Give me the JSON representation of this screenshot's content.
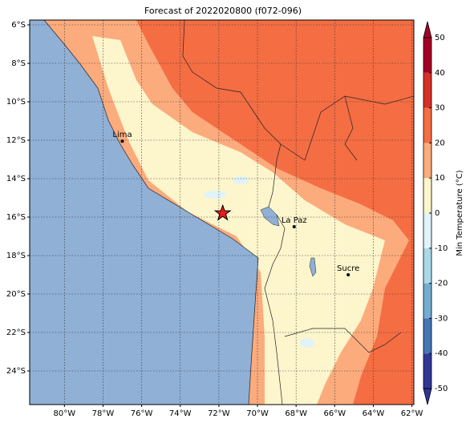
{
  "map": {
    "title": "Forecast of 2022020800 (f072-096)",
    "xlim": [
      -81.8,
      -61.9
    ],
    "ylim": [
      -25.75,
      -5.75
    ],
    "xticks": [
      {
        "value": -80,
        "label": "80°W"
      },
      {
        "value": -78,
        "label": "78°W"
      },
      {
        "value": -76,
        "label": "76°W"
      },
      {
        "value": -74,
        "label": "74°W"
      },
      {
        "value": -72,
        "label": "72°W"
      },
      {
        "value": -70,
        "label": "70°W"
      },
      {
        "value": -68,
        "label": "68°W"
      },
      {
        "value": -66,
        "label": "66°W"
      },
      {
        "value": -64,
        "label": "64°W"
      },
      {
        "value": -62,
        "label": "62°W"
      }
    ],
    "yticks": [
      {
        "value": -6,
        "label": "6°S"
      },
      {
        "value": -8,
        "label": "8°S"
      },
      {
        "value": -10,
        "label": "10°S"
      },
      {
        "value": -12,
        "label": "12°S"
      },
      {
        "value": -14,
        "label": "14°S"
      },
      {
        "value": -16,
        "label": "16°S"
      },
      {
        "value": -18,
        "label": "18°S"
      },
      {
        "value": -20,
        "label": "20°S"
      },
      {
        "value": -22,
        "label": "22°S"
      },
      {
        "value": -24,
        "label": "24°S"
      }
    ],
    "grid": true,
    "cities": [
      {
        "name": "Lima",
        "lon": -77.0,
        "lat": -12.05
      },
      {
        "name": "La Paz",
        "lon": -68.1,
        "lat": -16.5
      },
      {
        "name": "Sucre",
        "lon": -65.3,
        "lat": -19.0
      }
    ],
    "marker": {
      "lon": -71.8,
      "lat": -15.8,
      "color": "#e41a1c"
    },
    "colorbar": {
      "label": "Min Temperature (°C)",
      "ticks": [
        -50,
        -40,
        -30,
        -20,
        -10,
        0,
        10,
        20,
        30,
        40,
        50
      ],
      "colors": [
        "#313695",
        "#4575b4",
        "#74add1",
        "#abd9e9",
        "#e0f3f8",
        "#fdf5cc",
        "#fcab7c",
        "#f46d43",
        "#d73027",
        "#a50026"
      ]
    }
  }
}
